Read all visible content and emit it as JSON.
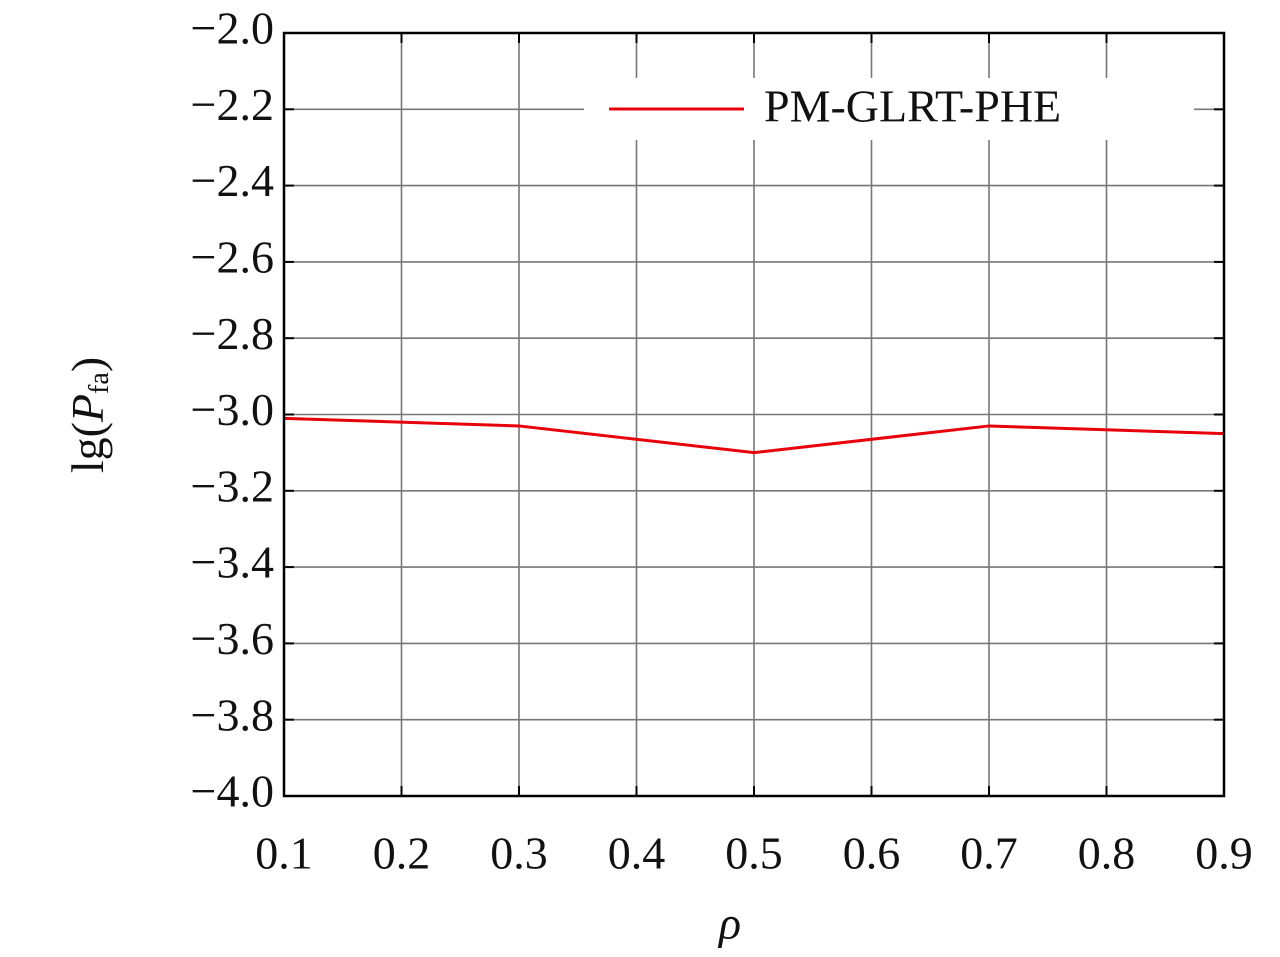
{
  "chart_data": {
    "type": "line",
    "xlabel": "ρ",
    "ylabel": {
      "prefix": "lg(",
      "var": "P",
      "sub": "fa",
      "suffix": ")"
    },
    "x": [
      0.1,
      0.3,
      0.5,
      0.7,
      0.9
    ],
    "series": [
      {
        "name": "PM-GLRT-PHE",
        "color": "#e8000b",
        "values": [
          -3.01,
          -3.03,
          -3.1,
          -3.03,
          -3.05
        ]
      }
    ],
    "xlim": [
      0.1,
      0.9
    ],
    "xticks": [
      0.1,
      0.2,
      0.3,
      0.4,
      0.5,
      0.6,
      0.7,
      0.8,
      0.9
    ],
    "ylim": [
      -4.0,
      -2.0
    ],
    "yticks": [
      {
        "value": -4.0,
        "label": "−4.0"
      },
      {
        "value": -3.8,
        "label": "−3.8"
      },
      {
        "value": -3.6,
        "label": "−3.6"
      },
      {
        "value": -3.4,
        "label": "−3.4"
      },
      {
        "value": -3.2,
        "label": "−3.2"
      },
      {
        "value": -3.0,
        "label": "−3.0"
      },
      {
        "value": -2.8,
        "label": "−2.8"
      },
      {
        "value": -2.6,
        "label": "−2.6"
      },
      {
        "value": -2.4,
        "label": "−2.4"
      },
      {
        "value": -2.2,
        "label": "−2.2"
      },
      {
        "value": -2.0,
        "label": "−2.0"
      }
    ],
    "grid": true,
    "legend": "upper right"
  }
}
